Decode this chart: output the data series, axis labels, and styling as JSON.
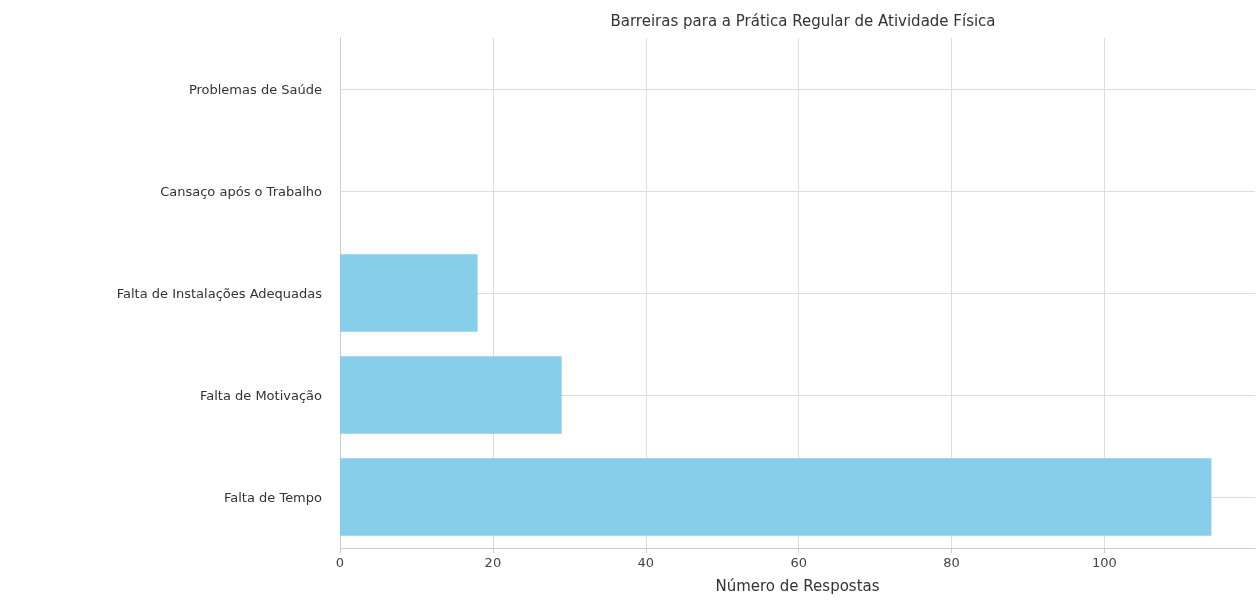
{
  "chart_data": {
    "type": "bar",
    "orientation": "horizontal",
    "title": "Barreiras para a Prática Regular de Atividade Física",
    "xlabel": "Número de Respostas",
    "categories": [
      "Problemas de Saúde",
      "Cansaço após o Trabalho",
      "Falta de Instalações Adequadas",
      "Falta de Motivação",
      "Falta de Tempo"
    ],
    "values": [
      0,
      0,
      18,
      29,
      114
    ],
    "color": "#87ceeb",
    "xlim": [
      0,
      119.7
    ],
    "xticks": [
      0,
      20,
      40,
      60,
      80,
      100
    ],
    "grid": true
  }
}
